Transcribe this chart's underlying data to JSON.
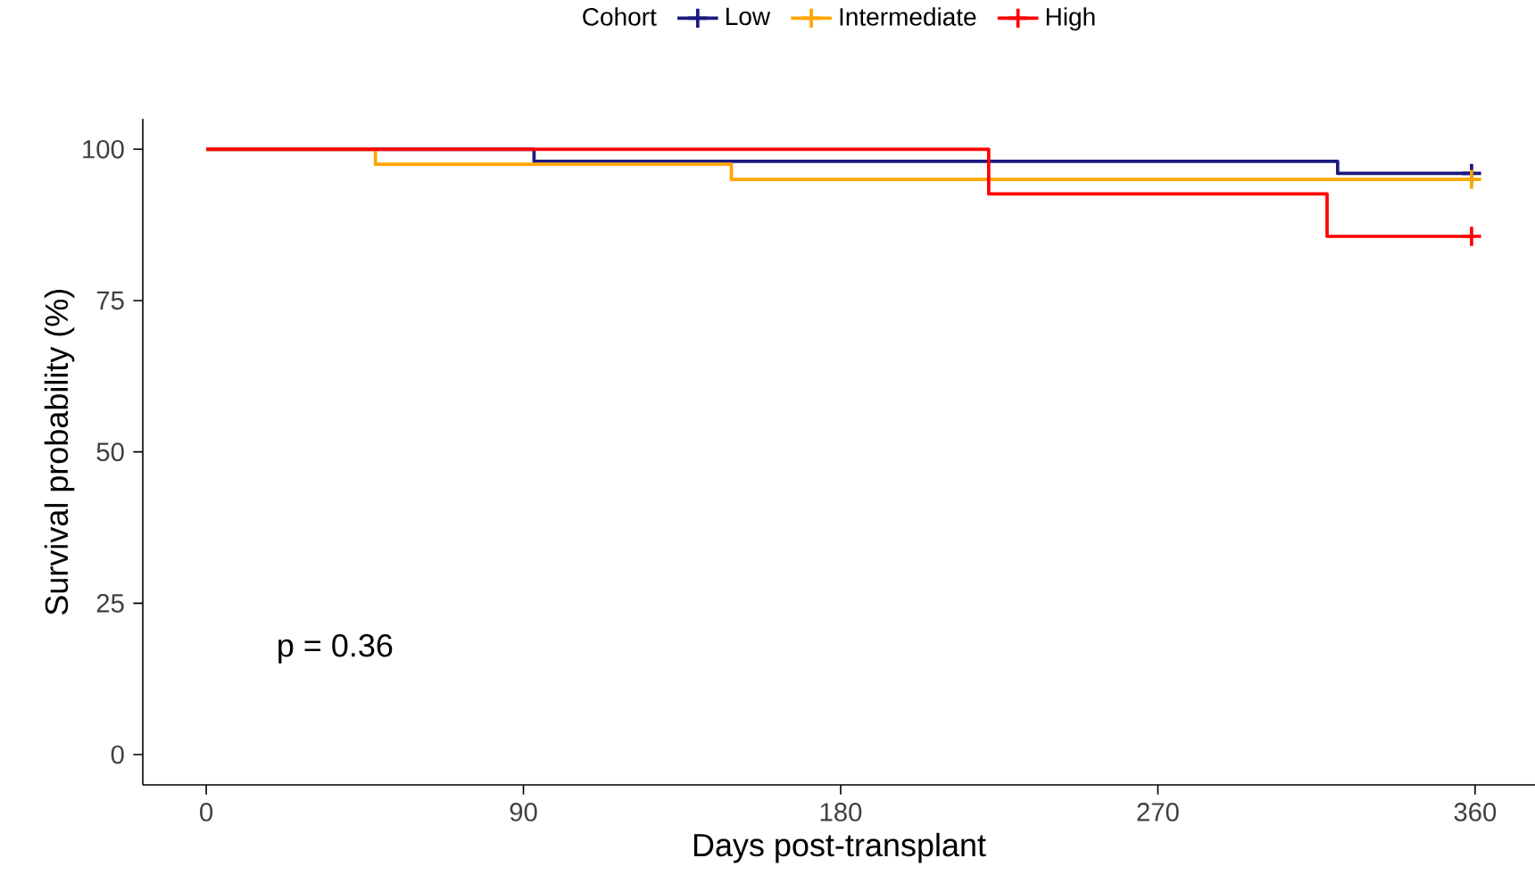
{
  "chart_data": {
    "type": "step",
    "xlabel": "Days post-transplant",
    "ylabel": "Survival probability (%)",
    "legend_title": "Cohort",
    "legend": "top",
    "line_style": "solid",
    "grid": false,
    "xlim": [
      -18,
      377
    ],
    "ylim": [
      -5,
      105
    ],
    "xticks": [
      0,
      90,
      180,
      270,
      360
    ],
    "yticks": [
      0,
      25,
      50,
      75,
      100
    ],
    "series": [
      {
        "name": "Low",
        "color": "#1a1a80",
        "x": [
          0,
          93,
          321,
          359
        ],
        "values": [
          100,
          98,
          96,
          96
        ]
      },
      {
        "name": "Intermediate",
        "color": "#ffa500",
        "x": [
          0,
          48,
          149,
          359
        ],
        "values": [
          100,
          97.5,
          95,
          95
        ]
      },
      {
        "name": "High",
        "color": "#ff0000",
        "x": [
          0,
          222,
          318,
          359
        ],
        "values": [
          100,
          92.6,
          85.6,
          85.6
        ]
      },
      {
        "type": "scatter",
        "marker": "cross",
        "color": "#1a1a80",
        "x": [
          359
        ],
        "values": [
          96
        ]
      },
      {
        "type": "scatter",
        "marker": "cross",
        "color": "#ffa500",
        "x": [
          359
        ],
        "values": [
          95
        ]
      },
      {
        "type": "scatter",
        "marker": "cross",
        "color": "#ff0000",
        "x": [
          359
        ],
        "values": [
          85.6
        ]
      }
    ],
    "annotations": [
      "p = 0.36"
    ]
  }
}
